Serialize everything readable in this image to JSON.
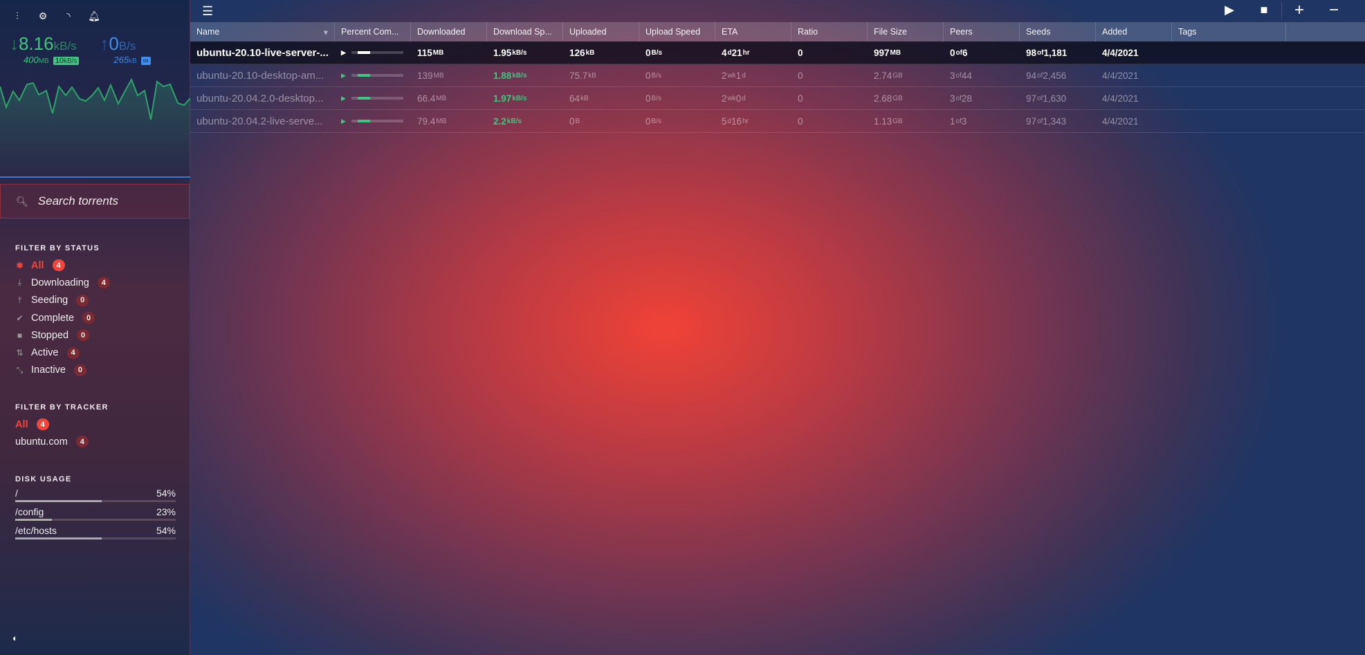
{
  "sidebar": {
    "icons": [
      "equalizer-icon",
      "gear-icon",
      "rss-icon",
      "bell-icon"
    ],
    "download": {
      "speed": "8.16",
      "unit": "kB/s",
      "total": "400",
      "total_unit": "MB",
      "limit": "10",
      "limit_unit": "kB/s"
    },
    "upload": {
      "speed": "0",
      "unit": "B/s",
      "total": "265",
      "total_unit": "kB",
      "limit": "∞"
    },
    "search_placeholder": "Search torrents",
    "status": {
      "title": "FILTER BY STATUS",
      "items": [
        {
          "label": "All",
          "count": "4",
          "icon": "asterisk-icon",
          "active": true
        },
        {
          "label": "Downloading",
          "count": "4",
          "icon": "download-icon"
        },
        {
          "label": "Seeding",
          "count": "0",
          "icon": "upload-icon"
        },
        {
          "label": "Complete",
          "count": "0",
          "icon": "check-icon"
        },
        {
          "label": "Stopped",
          "count": "0",
          "icon": "stop-icon"
        },
        {
          "label": "Active",
          "count": "4",
          "icon": "arrows-icon"
        },
        {
          "label": "Inactive",
          "count": "0",
          "icon": "inactive-icon"
        }
      ]
    },
    "tracker": {
      "title": "FILTER BY TRACKER",
      "items": [
        {
          "label": "All",
          "count": "4",
          "active": true
        },
        {
          "label": "ubuntu.com",
          "count": "4"
        }
      ]
    },
    "disk": {
      "title": "DISK USAGE",
      "items": [
        {
          "path": "/",
          "percent": "54%",
          "value": 54
        },
        {
          "path": "/config",
          "percent": "23%",
          "value": 23
        },
        {
          "path": "/etc/hosts",
          "percent": "54%",
          "value": 54
        }
      ]
    }
  },
  "colors": {
    "accent": "#f2443a",
    "download": "#3cc77c",
    "upload": "#3e8ef0"
  },
  "table": {
    "columns": [
      "Name",
      "Percent Com...",
      "Downloaded",
      "Download Sp...",
      "Uploaded",
      "Upload Speed",
      "ETA",
      "Ratio",
      "File Size",
      "Peers",
      "Seeds",
      "Added",
      "Tags"
    ],
    "rows": [
      {
        "name": "ubuntu-20.10-live-server-...",
        "progress": 11,
        "downloaded": [
          "115",
          "MB"
        ],
        "dlspeed": [
          "1.95",
          "kB/s"
        ],
        "uploaded": [
          "126",
          "kB"
        ],
        "ulspeed": [
          "0",
          "B/s"
        ],
        "eta": [
          "4",
          "d",
          " 21",
          "hr"
        ],
        "ratio": "0",
        "size": [
          "997",
          "MB"
        ],
        "peers": [
          "0",
          " of ",
          "6"
        ],
        "seeds": [
          "98",
          " of ",
          "1,181"
        ],
        "added": "4/4/2021",
        "tags": "",
        "selected": true
      },
      {
        "name": "ubuntu-20.10-desktop-am...",
        "progress": 3,
        "downloaded": [
          "139",
          "MB"
        ],
        "dlspeed": [
          "1.88",
          "kB/s"
        ],
        "uploaded": [
          "75.7",
          "kB"
        ],
        "ulspeed": [
          "0",
          "B/s"
        ],
        "eta": [
          "2",
          "wk",
          " 1",
          "d"
        ],
        "ratio": "0",
        "size": [
          "2.74",
          "GB"
        ],
        "peers": [
          "3",
          " of ",
          "44"
        ],
        "seeds": [
          "94",
          " of ",
          "2,456"
        ],
        "added": "4/4/2021",
        "tags": ""
      },
      {
        "name": "ubuntu-20.04.2.0-desktop...",
        "progress": 3,
        "downloaded": [
          "66.4",
          "MB"
        ],
        "dlspeed": [
          "1.97",
          "kB/s"
        ],
        "uploaded": [
          "64",
          "kB"
        ],
        "ulspeed": [
          "0",
          "B/s"
        ],
        "eta": [
          "2",
          "wk",
          " 0",
          "d"
        ],
        "ratio": "0",
        "size": [
          "2.68",
          "GB"
        ],
        "peers": [
          "3",
          " of ",
          "28"
        ],
        "seeds": [
          "97",
          " of ",
          "1,630"
        ],
        "added": "4/4/2021",
        "tags": ""
      },
      {
        "name": "ubuntu-20.04.2-live-serve...",
        "progress": 7,
        "downloaded": [
          "79.4",
          "MB"
        ],
        "dlspeed": [
          "2.2",
          "kB/s"
        ],
        "uploaded": [
          "0",
          "B"
        ],
        "ulspeed": [
          "0",
          "B/s"
        ],
        "eta": [
          "5",
          "d",
          " 16",
          "hr"
        ],
        "ratio": "0",
        "size": [
          "1.13",
          "GB"
        ],
        "peers": [
          "1",
          " of ",
          "3"
        ],
        "seeds": [
          "97",
          " of ",
          "1,343"
        ],
        "added": "4/4/2021",
        "tags": ""
      }
    ]
  }
}
